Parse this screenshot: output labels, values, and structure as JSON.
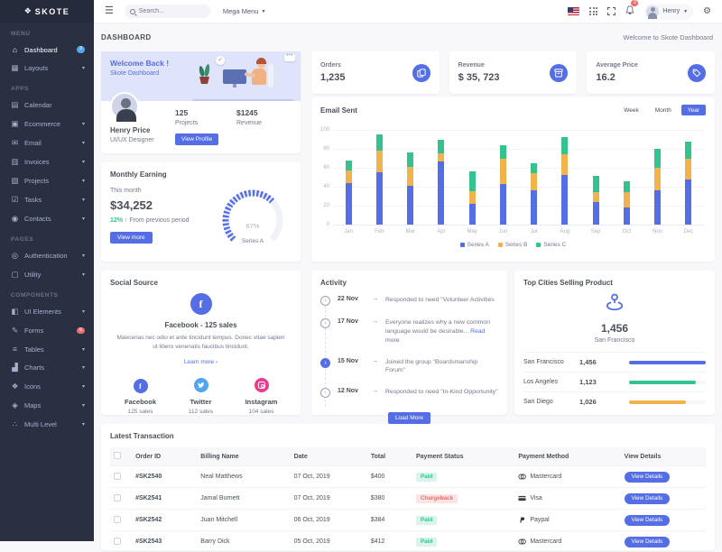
{
  "brand": {
    "name": "SKOTE"
  },
  "topbar": {
    "search_placeholder": "Search...",
    "mega_menu_label": "Mega Menu",
    "notification_count": "3",
    "user_name": "Henry"
  },
  "page": {
    "title": "DASHBOARD",
    "breadcrumb": "Welcome to Skote Dashboard"
  },
  "sidebar": {
    "sections": [
      {
        "label": "MENU",
        "items": [
          {
            "label": "Dashboard",
            "icon": "home-icon",
            "active": true,
            "badge": "3",
            "badge_color": "#50a5f1"
          },
          {
            "label": "Layouts",
            "icon": "layouts-icon",
            "chevron": true
          }
        ]
      },
      {
        "label": "APPS",
        "items": [
          {
            "label": "Calendar",
            "icon": "calendar-icon"
          },
          {
            "label": "Ecommerce",
            "icon": "ecommerce-icon",
            "chevron": true
          },
          {
            "label": "Email",
            "icon": "email-icon",
            "chevron": true
          },
          {
            "label": "Invoices",
            "icon": "invoices-icon",
            "chevron": true
          },
          {
            "label": "Projects",
            "icon": "projects-icon",
            "chevron": true
          },
          {
            "label": "Tasks",
            "icon": "tasks-icon",
            "chevron": true
          },
          {
            "label": "Contacts",
            "icon": "contacts-icon",
            "chevron": true
          }
        ]
      },
      {
        "label": "PAGES",
        "items": [
          {
            "label": "Authentication",
            "icon": "authentication-icon",
            "chevron": true
          },
          {
            "label": "Utility",
            "icon": "utility-icon",
            "chevron": true
          }
        ]
      },
      {
        "label": "COMPONENTS",
        "items": [
          {
            "label": "UI Elements",
            "icon": "ui-elements-icon",
            "chevron": true
          },
          {
            "label": "Forms",
            "icon": "forms-icon",
            "badge": "6",
            "badge_color": "#f46a6a"
          },
          {
            "label": "Tables",
            "icon": "tables-icon",
            "chevron": true
          },
          {
            "label": "Charts",
            "icon": "charts-icon",
            "chevron": true
          },
          {
            "label": "Icons",
            "icon": "icons-icon",
            "chevron": true
          },
          {
            "label": "Maps",
            "icon": "maps-icon",
            "chevron": true
          },
          {
            "label": "Multi Level",
            "icon": "multi-level-icon",
            "chevron": true
          }
        ]
      }
    ]
  },
  "welcome": {
    "title": "Welcome Back !",
    "subtitle": "Skote Dashboard",
    "name": "Henry Price",
    "role": "UI/UX Designer",
    "stats": [
      {
        "value": "125",
        "label": "Projects"
      },
      {
        "value": "$1245",
        "label": "Revenue"
      }
    ],
    "button": "View Profile"
  },
  "stat_cards": [
    {
      "label": "Orders",
      "value": "1,235",
      "icon": "copy-icon"
    },
    {
      "label": "Revenue",
      "value": "$ 35, 723",
      "icon": "archive-icon"
    },
    {
      "label": "Average Price",
      "value": "16.2",
      "icon": "tag-icon"
    }
  ],
  "monthly": {
    "title": "Monthly Earning",
    "period": "This month",
    "amount": "$34,252",
    "change": "12%",
    "change_note": "From previous period",
    "button": "View more",
    "gauge": {
      "value": "67%",
      "percent": 67,
      "label": "Series A",
      "color": "#556ee6"
    }
  },
  "email": {
    "title": "Email Sent",
    "tabs": [
      "Week",
      "Month",
      "Year"
    ],
    "active_tab": "Year"
  },
  "chart_data": {
    "type": "bar",
    "stacked": true,
    "title": "Email Sent",
    "categories": [
      "Jan",
      "Feb",
      "Mar",
      "Apr",
      "May",
      "Jun",
      "Jul",
      "Aug",
      "Sep",
      "Oct",
      "Nov",
      "Dec"
    ],
    "series": [
      {
        "name": "Series A",
        "color": "#556ee6",
        "values": [
          44,
          55,
          41,
          67,
          22,
          43,
          36,
          52,
          24,
          18,
          36,
          48
        ]
      },
      {
        "name": "Series B",
        "color": "#f1b44c",
        "values": [
          13,
          23,
          20,
          8,
          13,
          27,
          18,
          22,
          10,
          16,
          24,
          22
        ]
      },
      {
        "name": "Series C",
        "color": "#34c38f",
        "values": [
          11,
          17,
          15,
          15,
          21,
          14,
          11,
          18,
          17,
          12,
          20,
          18
        ]
      }
    ],
    "ylim": [
      0,
      100
    ],
    "yticks": [
      0,
      20,
      40,
      60,
      80,
      100
    ],
    "grid": true,
    "legend_position": "bottom"
  },
  "social": {
    "title": "Social Source",
    "highlight_name": "Facebook",
    "highlight_rest": "- 125 sales",
    "description": "Maecenas nec odio et ante tincidunt tempus. Donec vitae sapien ut libero venenatis faucibus tincidunt.",
    "learn_more": "Learn more ›",
    "items": [
      {
        "name": "Facebook",
        "sales": "125 sales",
        "color": "#556ee6",
        "icon": "facebook-icon"
      },
      {
        "name": "Twitter",
        "sales": "112 sales",
        "color": "#50a5f1",
        "icon": "twitter-icon"
      },
      {
        "name": "Instagram",
        "sales": "104 sales",
        "color": "#e83e8c",
        "icon": "instagram-icon"
      }
    ]
  },
  "activity": {
    "title": "Activity",
    "items": [
      {
        "date": "22 Nov",
        "text": "Responded to need \"Volunteer Activities",
        "active": false
      },
      {
        "date": "17 Nov",
        "text": "Everyone realizes why a new common language would be desirable...",
        "link": "Read more",
        "active": false
      },
      {
        "date": "15 Nov",
        "text": "Joined the group \"Boardsmanship Forum\"",
        "active": true
      },
      {
        "date": "12 Nov",
        "text": "Responded to need \"In-Kind Opportunity\"",
        "active": false
      }
    ],
    "button": "Load More"
  },
  "cities": {
    "title": "Top Cities Selling Product",
    "highlight_value": "1,456",
    "highlight_city": "San Francisco",
    "rows": [
      {
        "city": "San Francisco",
        "value": "1,456",
        "color": "#556ee6",
        "bar_pct": 100
      },
      {
        "city": "Los Angeles",
        "value": "1,123",
        "color": "#34c38f",
        "bar_pct": 87
      },
      {
        "city": "San Diego",
        "value": "1,026",
        "color": "#f1b44c",
        "bar_pct": 74
      }
    ]
  },
  "transactions": {
    "title": "Latest Transaction",
    "columns": [
      "Order ID",
      "Billing Name",
      "Date",
      "Total",
      "Payment Status",
      "Payment Method",
      "View Details"
    ],
    "view_button": "View Details",
    "rows": [
      {
        "id": "#SK2540",
        "name": "Neal Matthews",
        "date": "07 Oct, 2019",
        "total": "$400",
        "status": "Paid",
        "method": "Mastercard"
      },
      {
        "id": "#SK2541",
        "name": "Jamal Burnett",
        "date": "07 Oct, 2019",
        "total": "$380",
        "status": "Chargeback",
        "method": "Visa"
      },
      {
        "id": "#SK2542",
        "name": "Juan Mitchell",
        "date": "06 Oct, 2019",
        "total": "$384",
        "status": "Paid",
        "method": "Paypal"
      },
      {
        "id": "#SK2543",
        "name": "Barry Dick",
        "date": "05 Oct, 2019",
        "total": "$412",
        "status": "Paid",
        "method": "Mastercard"
      }
    ]
  }
}
